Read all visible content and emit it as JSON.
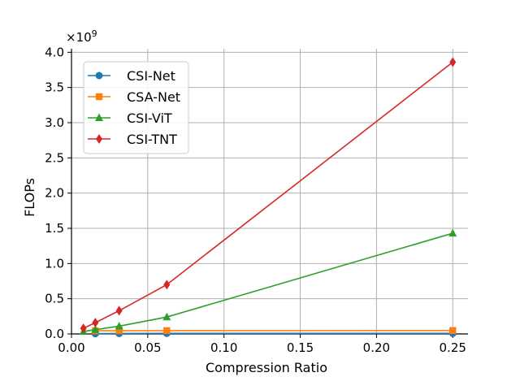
{
  "chart_data": {
    "type": "line",
    "title": "",
    "xlabel": "Compression Ratio",
    "ylabel": "FLOPs",
    "y_multiplier": "×10",
    "y_multiplier_exp": "9",
    "xlim": [
      0.0,
      0.26
    ],
    "ylim": [
      0.0,
      4.05
    ],
    "xticks": [
      0.0,
      0.05,
      0.1,
      0.15,
      0.2,
      0.25
    ],
    "xtick_labels": [
      "0.00",
      "0.05",
      "0.10",
      "0.15",
      "0.20",
      "0.25"
    ],
    "yticks": [
      0.0,
      0.5,
      1.0,
      1.5,
      2.0,
      2.5,
      3.0,
      3.5,
      4.0
    ],
    "ytick_labels": [
      "0.0",
      "0.5",
      "1.0",
      "1.5",
      "2.0",
      "2.5",
      "3.0",
      "3.5",
      "4.0"
    ],
    "grid": true,
    "legend_position": "top-left",
    "series": [
      {
        "name": "CSI-Net",
        "color": "#1f77b4",
        "marker": "circle",
        "x": [
          0.015625,
          0.03125,
          0.0625,
          0.25
        ],
        "y": [
          0.004,
          0.006,
          0.008,
          0.008
        ]
      },
      {
        "name": "CSA-Net",
        "color": "#ff7f0e",
        "marker": "square",
        "x": [
          0.015625,
          0.03125,
          0.0625,
          0.25
        ],
        "y": [
          0.045,
          0.046,
          0.047,
          0.048
        ]
      },
      {
        "name": "CSI-ViT",
        "color": "#2ca02c",
        "marker": "triangle",
        "x": [
          0.0078125,
          0.015625,
          0.03125,
          0.0625,
          0.25
        ],
        "y": [
          0.035,
          0.06,
          0.11,
          0.24,
          1.43
        ]
      },
      {
        "name": "CSI-TNT",
        "color": "#d62728",
        "marker": "diamond",
        "x": [
          0.0078125,
          0.015625,
          0.03125,
          0.0625,
          0.25
        ],
        "y": [
          0.08,
          0.16,
          0.33,
          0.7,
          3.86
        ]
      }
    ]
  }
}
